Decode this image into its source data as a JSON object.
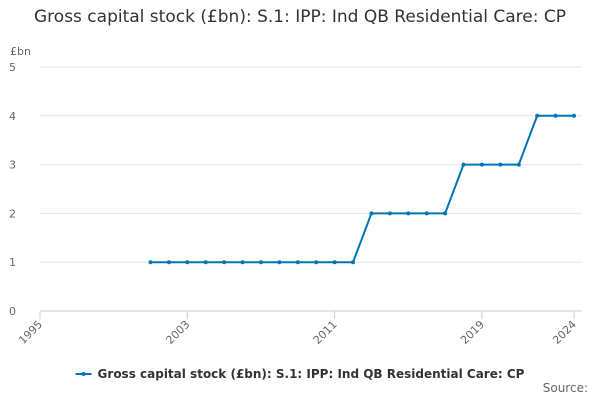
{
  "chart_data": {
    "type": "line",
    "title": "Gross capital stock (£bn): S.1: IPP: Ind QB Residential Care: CP",
    "ylabel": "£bn",
    "x": [
      2001,
      2002,
      2003,
      2004,
      2005,
      2006,
      2007,
      2008,
      2009,
      2010,
      2011,
      2012,
      2013,
      2014,
      2015,
      2016,
      2017,
      2018,
      2019,
      2020,
      2021,
      2022,
      2023,
      2024
    ],
    "series": [
      {
        "name": "Gross capital stock (£bn): S.1: IPP: Ind QB Residential Care: CP",
        "color": "#0075b4",
        "values": [
          1,
          1,
          1,
          1,
          1,
          1,
          1,
          1,
          1,
          1,
          1,
          1,
          2,
          2,
          2,
          2,
          2,
          3,
          3,
          3,
          3,
          4,
          4,
          4
        ]
      }
    ],
    "xlim": [
      1995,
      2024
    ],
    "xticks": [
      1995,
      2003,
      2011,
      2019,
      2024
    ],
    "ylim": [
      0,
      5
    ],
    "yticks": [
      0,
      1,
      2,
      3,
      4,
      5
    ],
    "grid": true,
    "legend": "bottom",
    "source": "Source:"
  }
}
